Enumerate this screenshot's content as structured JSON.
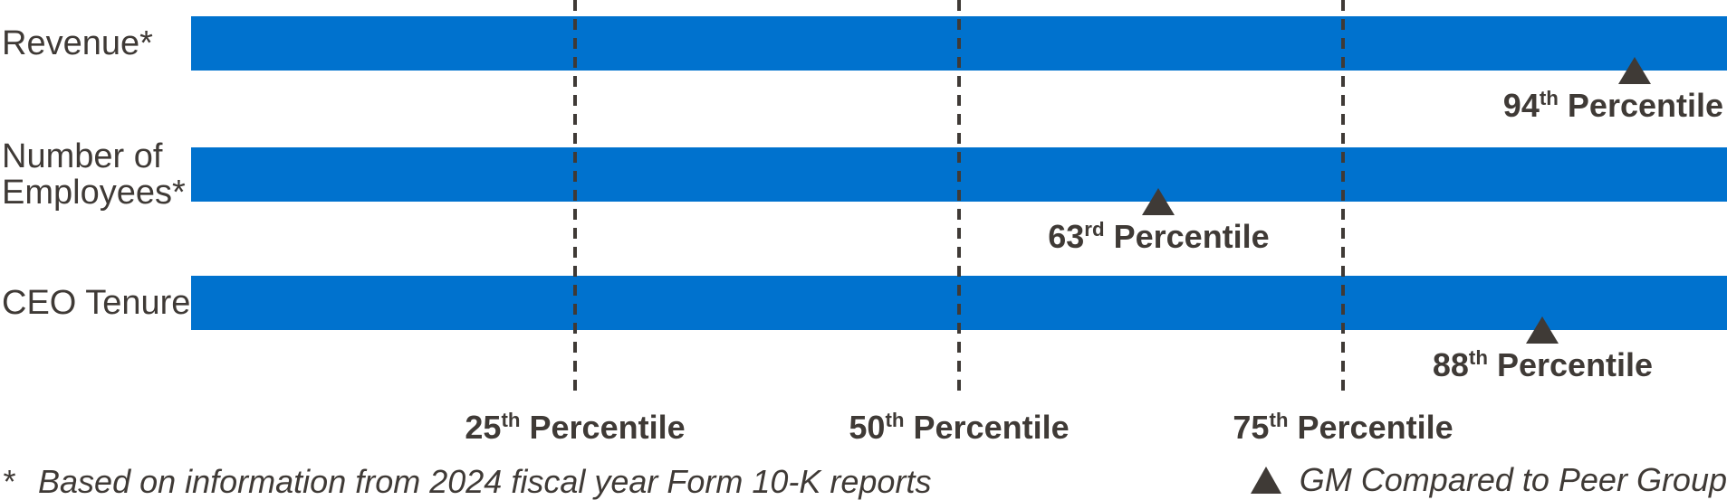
{
  "chart_data": {
    "type": "bar",
    "orientation": "horizontal",
    "title": "",
    "categories": [
      "Revenue*",
      "Number of Employees*",
      "CEO Tenure"
    ],
    "values": [
      94,
      63,
      88
    ],
    "value_labels": [
      "94th Percentile",
      "63rd Percentile",
      "88th Percentile"
    ],
    "xlim": [
      0,
      100
    ],
    "x_ticks": [
      {
        "value": 25,
        "label": "25th Percentile"
      },
      {
        "value": 50,
        "label": "50th Percentile"
      },
      {
        "value": 75,
        "label": "75th Percentile"
      }
    ],
    "grid": "dashed-vertical",
    "legend_position": "bottom-right",
    "marker": "triangle-up",
    "bars_full_width": true
  },
  "rows": [
    {
      "label_lines": [
        "Revenue*"
      ],
      "percentile": 94,
      "num": "94",
      "sup": "th",
      "rest": " Percentile"
    },
    {
      "label_lines": [
        "Number of",
        "Employees*"
      ],
      "percentile": 63,
      "num": "63",
      "sup": "rd",
      "rest": " Percentile"
    },
    {
      "label_lines": [
        "CEO Tenure"
      ],
      "percentile": 88,
      "num": "88",
      "sup": "th",
      "rest": " Percentile"
    }
  ],
  "ticks": [
    {
      "value": 25,
      "num": "25",
      "sup": "th",
      "rest": " Percentile"
    },
    {
      "value": 50,
      "num": "50",
      "sup": "th",
      "rest": " Percentile"
    },
    {
      "value": 75,
      "num": "75",
      "sup": "th",
      "rest": " Percentile"
    }
  ],
  "footer": {
    "asterisk": "*",
    "note": "Based on information from 2024 fiscal year Form 10-K reports",
    "legend": "GM Compared to Peer Group"
  },
  "colors": {
    "bar_blue": "#0072CE",
    "ink": "#3F3A36"
  }
}
